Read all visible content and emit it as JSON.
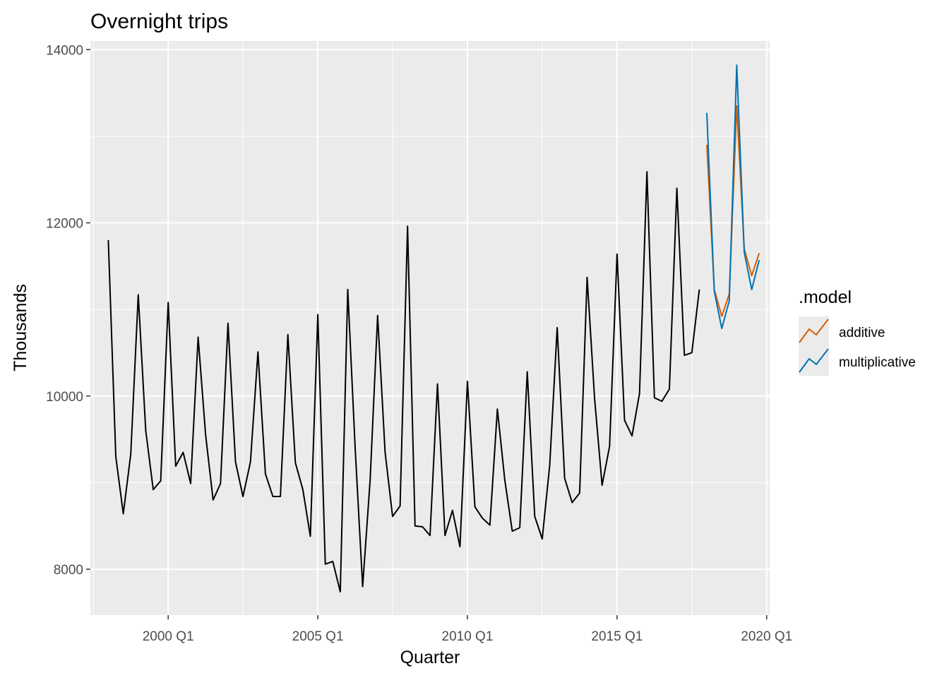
{
  "chart_data": {
    "type": "line",
    "title": "Overnight trips",
    "xlabel": "Quarter",
    "ylabel": "Thousands",
    "xlim": [
      1997.4,
      2020.1
    ],
    "ylim": [
      7470,
      14100
    ],
    "x_ticks": [
      2000,
      2005,
      2010,
      2015,
      2020
    ],
    "x_tick_labels": [
      "2000 Q1",
      "2005 Q1",
      "2010 Q1",
      "2015 Q1",
      "2020 Q1"
    ],
    "y_ticks": [
      8000,
      10000,
      12000,
      14000
    ],
    "y_tick_labels": [
      "8000",
      "10000",
      "12000",
      "14000"
    ],
    "grid": true,
    "background": "#ebebeb",
    "history": {
      "x_start": "1998 Q1",
      "color": "#000000",
      "values": [
        11800,
        9300,
        8640,
        9330,
        11170,
        9600,
        8920,
        9020,
        11080,
        9190,
        9350,
        8990,
        10680,
        9550,
        8800,
        8990,
        10840,
        9240,
        8840,
        9240,
        10510,
        9100,
        8840,
        8840,
        10710,
        9230,
        8920,
        8380,
        10940,
        8060,
        8090,
        7740,
        11230,
        9380,
        7800,
        9030,
        10930,
        9350,
        8610,
        8730,
        11960,
        8500,
        8490,
        8390,
        10140,
        8390,
        8680,
        8260,
        10170,
        8720,
        8590,
        8510,
        9850,
        9030,
        8440,
        8480,
        10280,
        8610,
        8350,
        9200,
        10790,
        9050,
        8770,
        8880,
        11370,
        9970,
        8970,
        9420,
        11640,
        9720,
        9540,
        10030,
        12590,
        9980,
        9940,
        10080,
        12400,
        10470,
        10500,
        11230
      ]
    },
    "forecast_x_start": "2018 Q1",
    "series": [
      {
        "name": "additive",
        "color": "#d55e00",
        "values": [
          12900,
          11230,
          10920,
          11180,
          13350,
          11700,
          11390,
          11650
        ]
      },
      {
        "name": "multiplicative",
        "color": "#0072b2",
        "values": [
          13270,
          11210,
          10780,
          11100,
          13820,
          11660,
          11230,
          11570
        ]
      }
    ],
    "legend": {
      "title": ".model",
      "position": "right"
    }
  }
}
